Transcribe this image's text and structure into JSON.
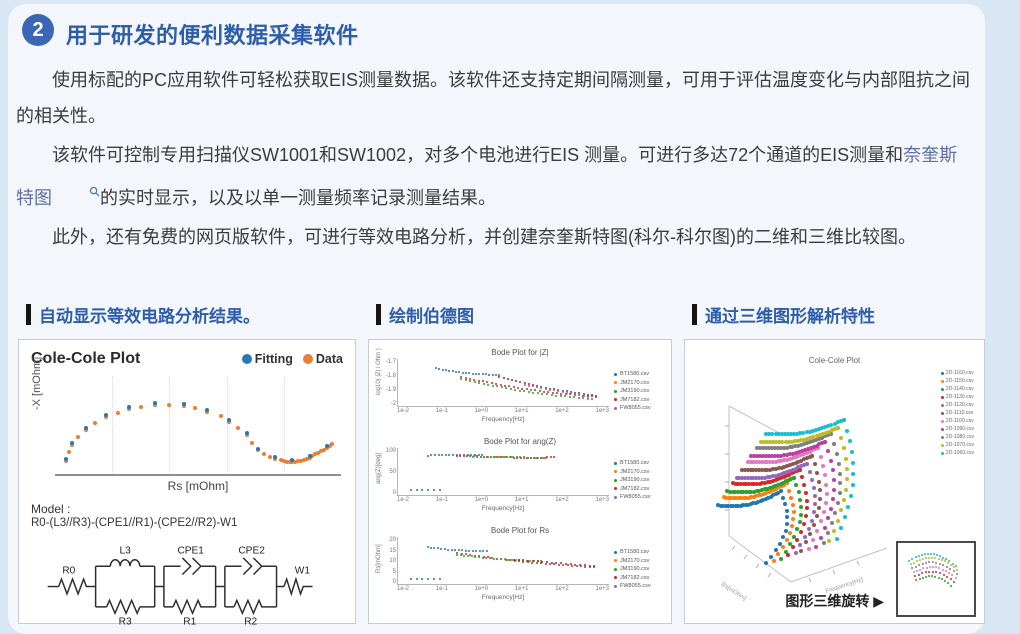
{
  "page": {
    "badge": "2",
    "title": "用于研发的便利数据采集软件"
  },
  "paragraphs": {
    "p1": "使用标配的PC应用软件可轻松获取EIS测量数据。该软件还支持定期间隔测量，可用于评估温度变化与内部阻抗之间的相关性。",
    "p2_pre": "该软件可控制专用扫描仪SW1001和SW1002，对多个电池进行EIS 测量。可进行多达72个通道的EIS测量和",
    "p2_link": "奈奎斯特图",
    "p2_post": "的实时显示，以及以单一测量频率记录测量结果。",
    "p3": "此外，还有免费的网页版软件，可进行等效电路分析，并创建奈奎斯特图(科尔-科尔图)的二维和三维比较图。"
  },
  "sections": {
    "s1": "自动显示等效电路分析结果。",
    "s2": "绘制伯德图",
    "s3": "通过三维图形解析特性"
  },
  "cole": {
    "type": "scatter",
    "title": "Cole-Cole Plot",
    "ylabel": "-X [mOhm]",
    "xlabel": "Rs [mOhm]",
    "legend": [
      {
        "color": "#2878b5",
        "label": "Fitting"
      },
      {
        "color": "#ee7d31",
        "label": "Data"
      }
    ],
    "model_label": "Model :",
    "model_formula": "R0-(L3//R3)-(CPE1//R1)-(CPE2//R2)-W1",
    "circuit": {
      "r0": "R0",
      "l3": "L3",
      "r3": "R3",
      "cpe1": "CPE1",
      "r1": "R1",
      "cpe2": "CPE2",
      "r2": "R2",
      "w1": "W1"
    },
    "series": [
      {
        "name": "Data",
        "color": "#ee7d31",
        "size": 4,
        "points": [
          [
            4,
            87
          ],
          [
            5,
            78
          ],
          [
            6,
            70
          ],
          [
            8,
            62
          ],
          [
            11,
            55
          ],
          [
            14,
            48
          ],
          [
            18,
            42
          ],
          [
            22,
            38
          ],
          [
            26,
            34
          ],
          [
            30,
            32
          ],
          [
            35,
            30
          ],
          [
            40,
            30
          ],
          [
            45,
            31
          ],
          [
            49,
            33
          ],
          [
            53,
            37
          ],
          [
            58,
            41
          ],
          [
            61,
            47
          ],
          [
            64,
            53
          ],
          [
            67,
            60
          ],
          [
            69,
            68
          ],
          [
            71,
            76
          ],
          [
            73,
            80
          ],
          [
            75,
            83
          ],
          [
            77,
            85
          ],
          [
            79,
            86
          ],
          [
            80,
            87
          ],
          [
            81,
            88
          ],
          [
            82,
            88
          ],
          [
            83,
            88
          ],
          [
            84,
            88
          ],
          [
            85,
            87
          ],
          [
            86,
            87
          ],
          [
            87,
            86
          ],
          [
            88,
            85
          ],
          [
            89,
            84
          ],
          [
            90,
            82
          ],
          [
            91,
            80
          ],
          [
            92,
            79
          ],
          [
            93,
            77
          ],
          [
            94,
            75
          ],
          [
            95,
            73
          ],
          [
            96,
            71
          ],
          [
            97,
            69
          ]
        ]
      },
      {
        "name": "Fitting",
        "color": "#2878b5",
        "size": 4,
        "points": [
          [
            4,
            85
          ],
          [
            6,
            68
          ],
          [
            11,
            53
          ],
          [
            18,
            40
          ],
          [
            26,
            32
          ],
          [
            35,
            28
          ],
          [
            45,
            29
          ],
          [
            53,
            35
          ],
          [
            61,
            45
          ],
          [
            67,
            58
          ],
          [
            71,
            74
          ],
          [
            77,
            83
          ],
          [
            83,
            86
          ],
          [
            89,
            82
          ],
          [
            95,
            71
          ]
        ]
      }
    ]
  },
  "bode": {
    "charts": [
      {
        "type": "scatter",
        "title": "Bode Plot for |Z|",
        "ylabel": "log10( |Z| / Ohm )",
        "yticks": [
          "-1.7",
          "-1.8",
          "-1.9",
          "-2"
        ],
        "xticks": [
          "1e-2",
          "1e-1",
          "1e+0",
          "1e+1",
          "1e+2",
          "1e+3"
        ],
        "xlabel": "Frequency[Hz]",
        "legend": [
          {
            "color": "#1f77b4",
            "label": "BT1580.csv"
          },
          {
            "color": "#ff7f0e",
            "label": "JM2170.csv"
          },
          {
            "color": "#2ca02c",
            "label": "JM3190.csv"
          },
          {
            "color": "#d62728",
            "label": "JM7182.csv"
          },
          {
            "color": "#9467bd",
            "label": "FW8055.csv"
          }
        ],
        "series": [
          {
            "color": "#1f77b4",
            "size": 2,
            "segs": [
              [
                18,
                20,
                48,
                34,
                -3,
                20
              ]
            ]
          },
          {
            "color": "#d62728",
            "size": 2,
            "segs": [
              [
                30,
                38,
                94,
                80,
                -6,
                32
              ]
            ]
          },
          {
            "color": "#2ca02c",
            "size": 2,
            "segs": [
              [
                30,
                42,
                92,
                85,
                -6,
                30
              ]
            ]
          },
          {
            "color": "#a02c2c",
            "size": 2,
            "segs": [
              [
                48,
                38,
                94,
                78,
                -4,
                24
              ]
            ]
          },
          {
            "color": "#9467bd",
            "size": 2,
            "segs": [
              [
                60,
                55,
                90,
                80,
                0,
                16
              ]
            ]
          }
        ]
      },
      {
        "type": "scatter",
        "title": "Bode Plot for ang(Z)",
        "ylabel": "ang(Z)[deg]",
        "yticks": [
          "100",
          "50",
          "0"
        ],
        "xticks": [
          "1e-2",
          "1e-1",
          "1e+0",
          "1e+1",
          "1e+2",
          "1e+3"
        ],
        "xlabel": "Frequency[Hz]",
        "legend": [
          {
            "color": "#1f77b4",
            "label": "BT1580.csv"
          },
          {
            "color": "#ff7f0e",
            "label": "JM2170.csv"
          },
          {
            "color": "#2ca02c",
            "label": "JM3190.csv"
          },
          {
            "color": "#d62728",
            "label": "JM7182.csv"
          },
          {
            "color": "#9467bd",
            "label": "FW8055.csv"
          }
        ],
        "series": [
          {
            "color": "#1f77b4",
            "size": 2,
            "segs": [
              [
                14,
                16,
                40,
                15,
                0,
                16
              ],
              [
                6,
                90,
                20,
                90,
                0,
                6
              ]
            ]
          },
          {
            "color": "#d62728",
            "size": 2,
            "segs": [
              [
                28,
                16,
                74,
                20,
                -2,
                30
              ]
            ]
          },
          {
            "color": "#2ca02c",
            "size": 2,
            "segs": [
              [
                34,
                18,
                70,
                21,
                0,
                22
              ]
            ]
          }
        ]
      },
      {
        "type": "scatter",
        "title": "Bode Plot for Rs",
        "ylabel": "Rs[mOhm]",
        "yticks": [
          "20",
          "15",
          "10",
          "5",
          "0"
        ],
        "xticks": [
          "1e-2",
          "1e-1",
          "1e+0",
          "1e+1",
          "1e+2",
          "1e+3"
        ],
        "xlabel": "Frequency[Hz]",
        "legend": [
          {
            "color": "#1f77b4",
            "label": "BT1580.csv"
          },
          {
            "color": "#ff7f0e",
            "label": "JM2170.csv"
          },
          {
            "color": "#2ca02c",
            "label": "JM3190.csv"
          },
          {
            "color": "#d62728",
            "label": "JM7182.csv"
          },
          {
            "color": "#9467bd",
            "label": "FW8055.csv"
          }
        ],
        "series": [
          {
            "color": "#1f77b4",
            "size": 2,
            "segs": [
              [
                14,
                22,
                42,
                30,
                -2,
                18
              ],
              [
                6,
                90,
                20,
                90,
                0,
                6
              ]
            ]
          },
          {
            "color": "#d62728",
            "size": 2,
            "segs": [
              [
                28,
                34,
                93,
                64,
                -4,
                32
              ]
            ]
          },
          {
            "color": "#2ca02c",
            "size": 2,
            "segs": [
              [
                28,
                38,
                68,
                52,
                -2,
                24
              ]
            ]
          },
          {
            "color": "#a02c2c",
            "size": 2,
            "segs": [
              [
                55,
                48,
                93,
                62,
                0,
                18
              ]
            ]
          }
        ]
      }
    ]
  },
  "surface": {
    "type": "scatter",
    "title": "Cole-Cole Plot",
    "caption": "图形三维旋转 ▶",
    "axis": {
      "x1": "Rs[mOhm]",
      "x2": "Frequency[Hz]"
    },
    "legend": [
      {
        "color": "#1f77b4",
        "label": "2D-1160.csv"
      },
      {
        "color": "#ff7f0e",
        "label": "2D-1150.csv"
      },
      {
        "color": "#2ca02c",
        "label": "2D-1140.csv"
      },
      {
        "color": "#d62728",
        "label": "2D-1130.csv"
      },
      {
        "color": "#9467bd",
        "label": "2D-1120.csv"
      },
      {
        "color": "#8c564b",
        "label": "2D-1110.csv"
      },
      {
        "color": "#e377c2",
        "label": "2D-1100.csv"
      },
      {
        "color": "#bb3fa0",
        "label": "2D-1090.csv"
      },
      {
        "color": "#7f7f7f",
        "label": "2D-1080.csv"
      },
      {
        "color": "#bcbd22",
        "label": "2D-1070.csv"
      },
      {
        "color": "#17becf",
        "label": "2D-1060.csv"
      }
    ],
    "series": [
      {
        "color": "#1f77b4",
        "size": 4,
        "segs": [
          [
            6,
            64,
            40,
            57,
            -3,
            26
          ],
          [
            40,
            57,
            32,
            93,
            0,
            12,
            -7
          ]
        ]
      },
      {
        "color": "#ff7f0e",
        "size": 4,
        "segs": [
          [
            9,
            60,
            43,
            53,
            -3,
            26
          ],
          [
            43,
            53,
            36,
            92,
            0,
            12,
            -7
          ]
        ]
      },
      {
        "color": "#2ca02c",
        "size": 4,
        "segs": [
          [
            11,
            57,
            47,
            50,
            -3,
            26
          ],
          [
            47,
            50,
            40,
            91,
            0,
            12,
            -7
          ]
        ]
      },
      {
        "color": "#d62728",
        "size": 4,
        "segs": [
          [
            14,
            53,
            50,
            46,
            -3,
            26
          ],
          [
            50,
            46,
            44,
            89,
            0,
            12,
            -7
          ]
        ]
      },
      {
        "color": "#9467bd",
        "size": 4,
        "segs": [
          [
            16,
            50,
            54,
            43,
            -3,
            26
          ],
          [
            54,
            43,
            48,
            88,
            0,
            12,
            -7
          ]
        ]
      },
      {
        "color": "#8c564b",
        "size": 4,
        "segs": [
          [
            19,
            46,
            57,
            39,
            -3,
            26
          ],
          [
            57,
            39,
            51,
            87,
            0,
            12,
            -7
          ]
        ]
      },
      {
        "color": "#e377c2",
        "size": 4,
        "segs": [
          [
            22,
            42,
            60,
            35,
            -3,
            26
          ],
          [
            60,
            35,
            55,
            86,
            0,
            12,
            -7
          ]
        ]
      },
      {
        "color": "#bb3fa0",
        "size": 4,
        "segs": [
          [
            24,
            39,
            64,
            32,
            -3,
            26
          ],
          [
            64,
            32,
            59,
            85,
            0,
            12,
            -7
          ]
        ]
      },
      {
        "color": "#7f7f7f",
        "size": 4,
        "segs": [
          [
            27,
            35,
            67,
            28,
            -3,
            26
          ],
          [
            67,
            28,
            63,
            83,
            0,
            12,
            -7
          ]
        ]
      },
      {
        "color": "#bcbd22",
        "size": 4,
        "segs": [
          [
            29,
            32,
            71,
            25,
            -3,
            26
          ],
          [
            71,
            25,
            66,
            82,
            0,
            12,
            -7
          ]
        ]
      },
      {
        "color": "#17becf",
        "size": 4,
        "segs": [
          [
            32,
            28,
            74,
            21,
            -3,
            26
          ],
          [
            74,
            21,
            70,
            81,
            0,
            12,
            -7
          ]
        ]
      }
    ],
    "inset_series": [
      {
        "color": "#17becf",
        "size": 2,
        "segs": [
          [
            12,
            22,
            78,
            30,
            14,
            16
          ]
        ]
      },
      {
        "color": "#bcbd22",
        "size": 2,
        "segs": [
          [
            14,
            28,
            80,
            36,
            14,
            16
          ]
        ]
      },
      {
        "color": "#7f7f7f",
        "size": 2,
        "segs": [
          [
            16,
            34,
            80,
            42,
            13,
            14
          ]
        ]
      },
      {
        "color": "#e377c2",
        "size": 2,
        "segs": [
          [
            18,
            40,
            78,
            48,
            12,
            14
          ]
        ]
      },
      {
        "color": "#d62728",
        "size": 2,
        "segs": [
          [
            20,
            46,
            76,
            54,
            11,
            12
          ]
        ]
      },
      {
        "color": "#2ca02c",
        "size": 2,
        "segs": [
          [
            22,
            52,
            72,
            60,
            10,
            12
          ]
        ]
      }
    ]
  }
}
